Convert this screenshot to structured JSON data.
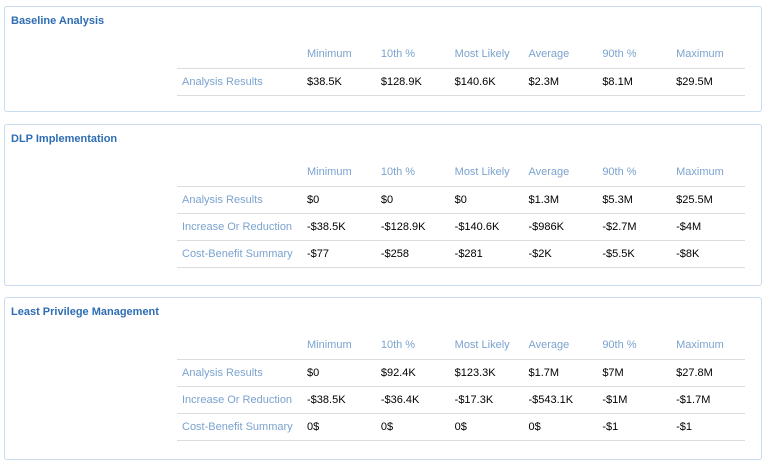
{
  "columns": [
    "Minimum",
    "10th %",
    "Most Likely",
    "Average",
    "90th %",
    "Maximum"
  ],
  "sections": [
    {
      "title": "Baseline Analysis",
      "rows": [
        {
          "label": "Analysis Results",
          "values": [
            "$38.5K",
            "$128.9K",
            "$140.6K",
            "$2.3M",
            "$8.1M",
            "$29.5M"
          ]
        }
      ]
    },
    {
      "title": "DLP Implementation",
      "rows": [
        {
          "label": "Analysis Results",
          "values": [
            "$0",
            "$0",
            "$0",
            "$1.3M",
            "$5.3M",
            "$25.5M"
          ]
        },
        {
          "label": "Increase Or Reduction",
          "values": [
            "-$38.5K",
            "-$128.9K",
            "-$140.6K",
            "-$986K",
            "-$2.7M",
            "-$4M"
          ]
        },
        {
          "label": "Cost-Benefit Summary",
          "values": [
            "-$77",
            "-$258",
            "-$281",
            "-$2K",
            "-$5.5K",
            "-$8K"
          ]
        }
      ]
    },
    {
      "title": "Least Privilege Management",
      "rows": [
        {
          "label": "Analysis Results",
          "values": [
            "$0",
            "$92.4K",
            "$123.3K",
            "$1.7M",
            "$7M",
            "$27.8M"
          ]
        },
        {
          "label": "Increase Or Reduction",
          "values": [
            "-$38.5K",
            "-$36.4K",
            "-$17.3K",
            "-$543.1K",
            "-$1M",
            "-$1.7M"
          ]
        },
        {
          "label": "Cost-Benefit Summary",
          "values": [
            "0$",
            "0$",
            "0$",
            "0$",
            "-$1",
            "-$1"
          ]
        }
      ]
    }
  ]
}
